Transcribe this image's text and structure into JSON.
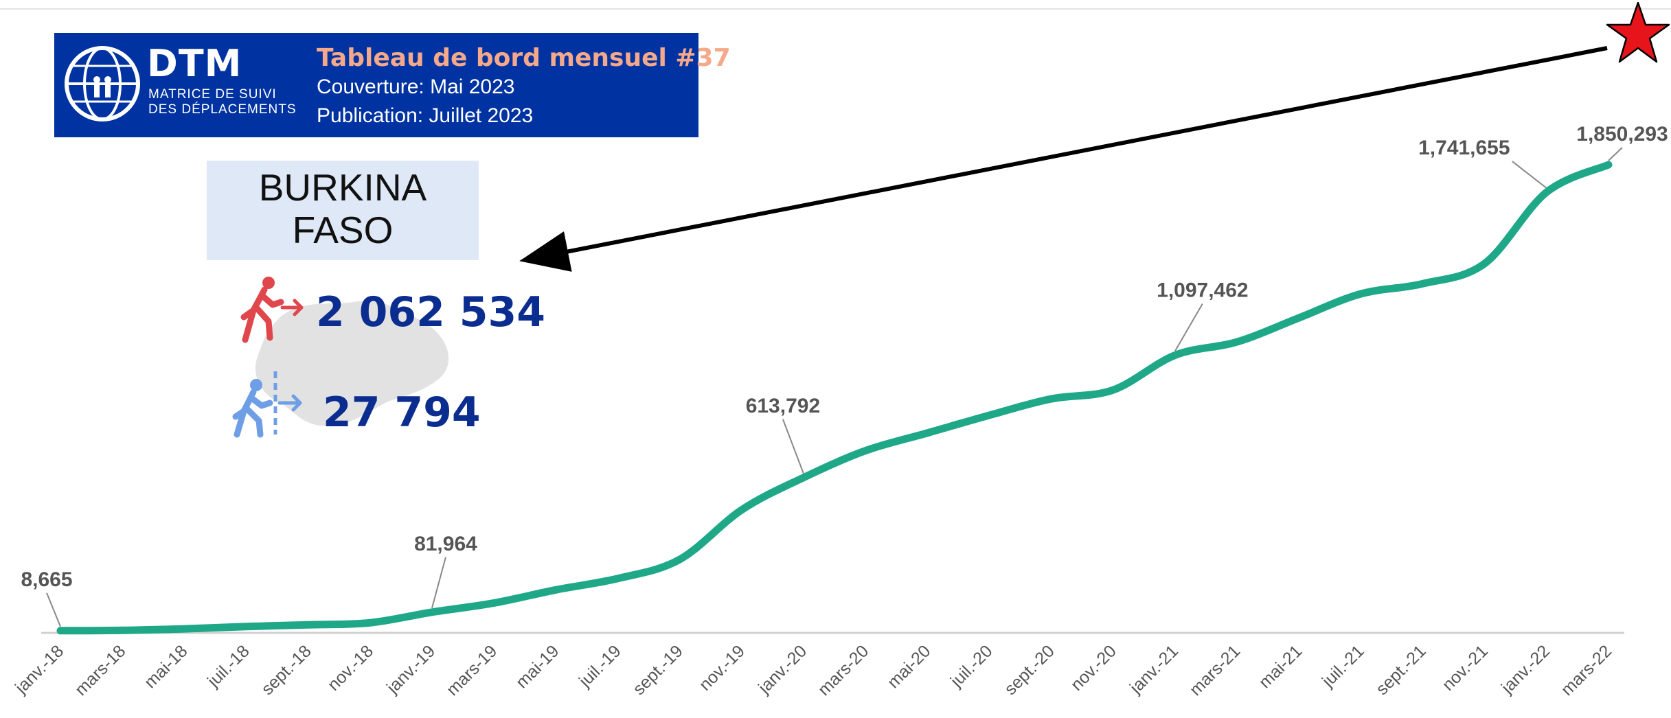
{
  "header": {
    "logo_word": "DTM",
    "logo_sub_1": "MATRICE DE SUIVI",
    "logo_sub_2": "DES DÉPLACEMENTS",
    "title": "Tableau de bord mensuel #37",
    "coverage": "Couverture: Mai 2023",
    "publication": "Publication: Juillet 2023"
  },
  "country": {
    "line1": "BURKINA",
    "line2": "FASO",
    "idp_value": "2 062 534",
    "returnee_value": "27 794"
  },
  "colors": {
    "line": "#1fa888",
    "header_bg": "#0033a1",
    "title_accent": "#f5a98a",
    "value_text": "#0a2d8f",
    "idp_icon": "#e0474c",
    "returnee_icon": "#6e9fe6",
    "star": "#e8141c"
  },
  "icons": [
    "iom-logo-icon",
    "person-leaving-icon",
    "person-returning-icon",
    "red-star-icon",
    "arrow-icon"
  ],
  "chart_data": {
    "type": "line",
    "categories": [
      "janv.-18",
      "mars-18",
      "mai-18",
      "juil.-18",
      "sept.-18",
      "nov.-18",
      "janv.-19",
      "mars-19",
      "mai-19",
      "juil.-19",
      "sept.-19",
      "nov.-19",
      "janv.-20",
      "mars-20",
      "mai-20",
      "juil.-20",
      "sept.-20",
      "nov.-20",
      "janv.-21",
      "mars-21",
      "mai-21",
      "juil.-21",
      "sept.-21",
      "nov.-21",
      "janv.-22",
      "mars-22"
    ],
    "series": [
      {
        "values": [
          8665,
          10000,
          16000,
          25000,
          32000,
          40000,
          81964,
          118000,
          170000,
          215000,
          290000,
          486000,
          613792,
          720000,
          790000,
          860000,
          925000,
          960000,
          1097462,
          1150000,
          1245000,
          1340000,
          1380000,
          1460000,
          1741655,
          1850293
        ]
      }
    ],
    "point_labels": [
      {
        "index": 0,
        "text": "8,665"
      },
      {
        "index": 6,
        "text": "81,964"
      },
      {
        "index": 12,
        "text": "613,792"
      },
      {
        "index": 18,
        "text": "1,097,462"
      },
      {
        "index": 24,
        "text": "1,741,655"
      },
      {
        "index": 25,
        "text": "1,850,293"
      }
    ],
    "ylim": [
      0,
      1850293
    ],
    "grid": false,
    "legend": "none"
  }
}
